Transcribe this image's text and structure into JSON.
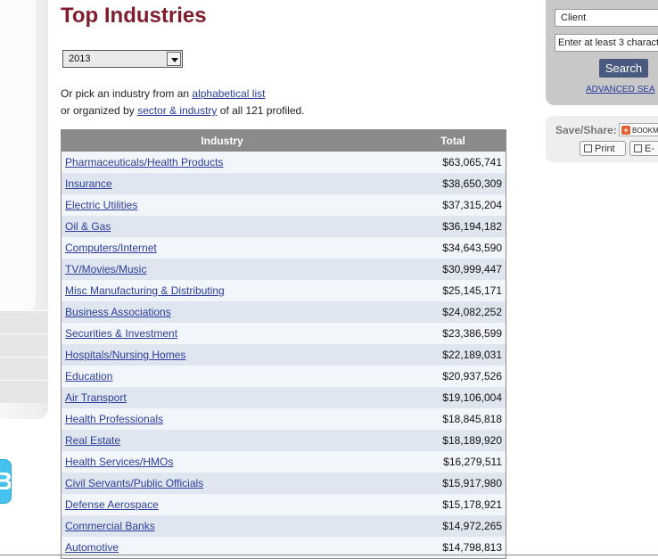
{
  "page": {
    "title": "Top Industries"
  },
  "year_select": {
    "selected": "2013"
  },
  "intro": {
    "line1_prefix": "Or pick an industry from an ",
    "line1_link": "alphabetical list",
    "line2_prefix": "or organized by ",
    "line2_link": "sector & industry",
    "line2_suffix": " of all 121 profiled."
  },
  "table": {
    "headers": {
      "industry": "Industry",
      "total": "Total"
    },
    "rows": [
      {
        "industry": "Pharmaceuticals/Health Products",
        "total": "$63,065,741"
      },
      {
        "industry": "Insurance",
        "total": "$38,650,309"
      },
      {
        "industry": "Electric Utilities",
        "total": "$37,315,204"
      },
      {
        "industry": "Oil & Gas",
        "total": "$36,194,182"
      },
      {
        "industry": "Computers/Internet",
        "total": "$34,643,590"
      },
      {
        "industry": "TV/Movies/Music",
        "total": "$30,999,447"
      },
      {
        "industry": "Misc Manufacturing & Distributing",
        "total": "$25,145,171"
      },
      {
        "industry": "Business Associations",
        "total": "$24,082,252"
      },
      {
        "industry": "Securities & Investment",
        "total": "$23,386,599"
      },
      {
        "industry": "Hospitals/Nursing Homes",
        "total": "$22,189,031"
      },
      {
        "industry": "Education",
        "total": "$20,937,526"
      },
      {
        "industry": "Air Transport",
        "total": "$19,106,004"
      },
      {
        "industry": "Health Professionals",
        "total": "$18,845,818"
      },
      {
        "industry": "Real Estate",
        "total": "$18,189,920"
      },
      {
        "industry": "Health Services/HMOs",
        "total": "$16,279,511"
      },
      {
        "industry": "Civil Servants/Public Officials",
        "total": "$15,917,980"
      },
      {
        "industry": "Defense Aerospace",
        "total": "$15,178,921"
      },
      {
        "industry": "Commercial Banks",
        "total": "$14,972,265"
      },
      {
        "industry": "Automotive",
        "total": "$14,798,813"
      }
    ]
  },
  "search": {
    "select_value": "Client",
    "input_placeholder": "Enter at least 3 charact",
    "button_label": "Search",
    "advanced_link": "ADVANCED SEA"
  },
  "share": {
    "label": "Save/Share:",
    "bookmark_label": "BOOKM",
    "print_label": "Print",
    "email_label": "E-"
  },
  "sidebar": {
    "twitter_glyph": "B"
  }
}
